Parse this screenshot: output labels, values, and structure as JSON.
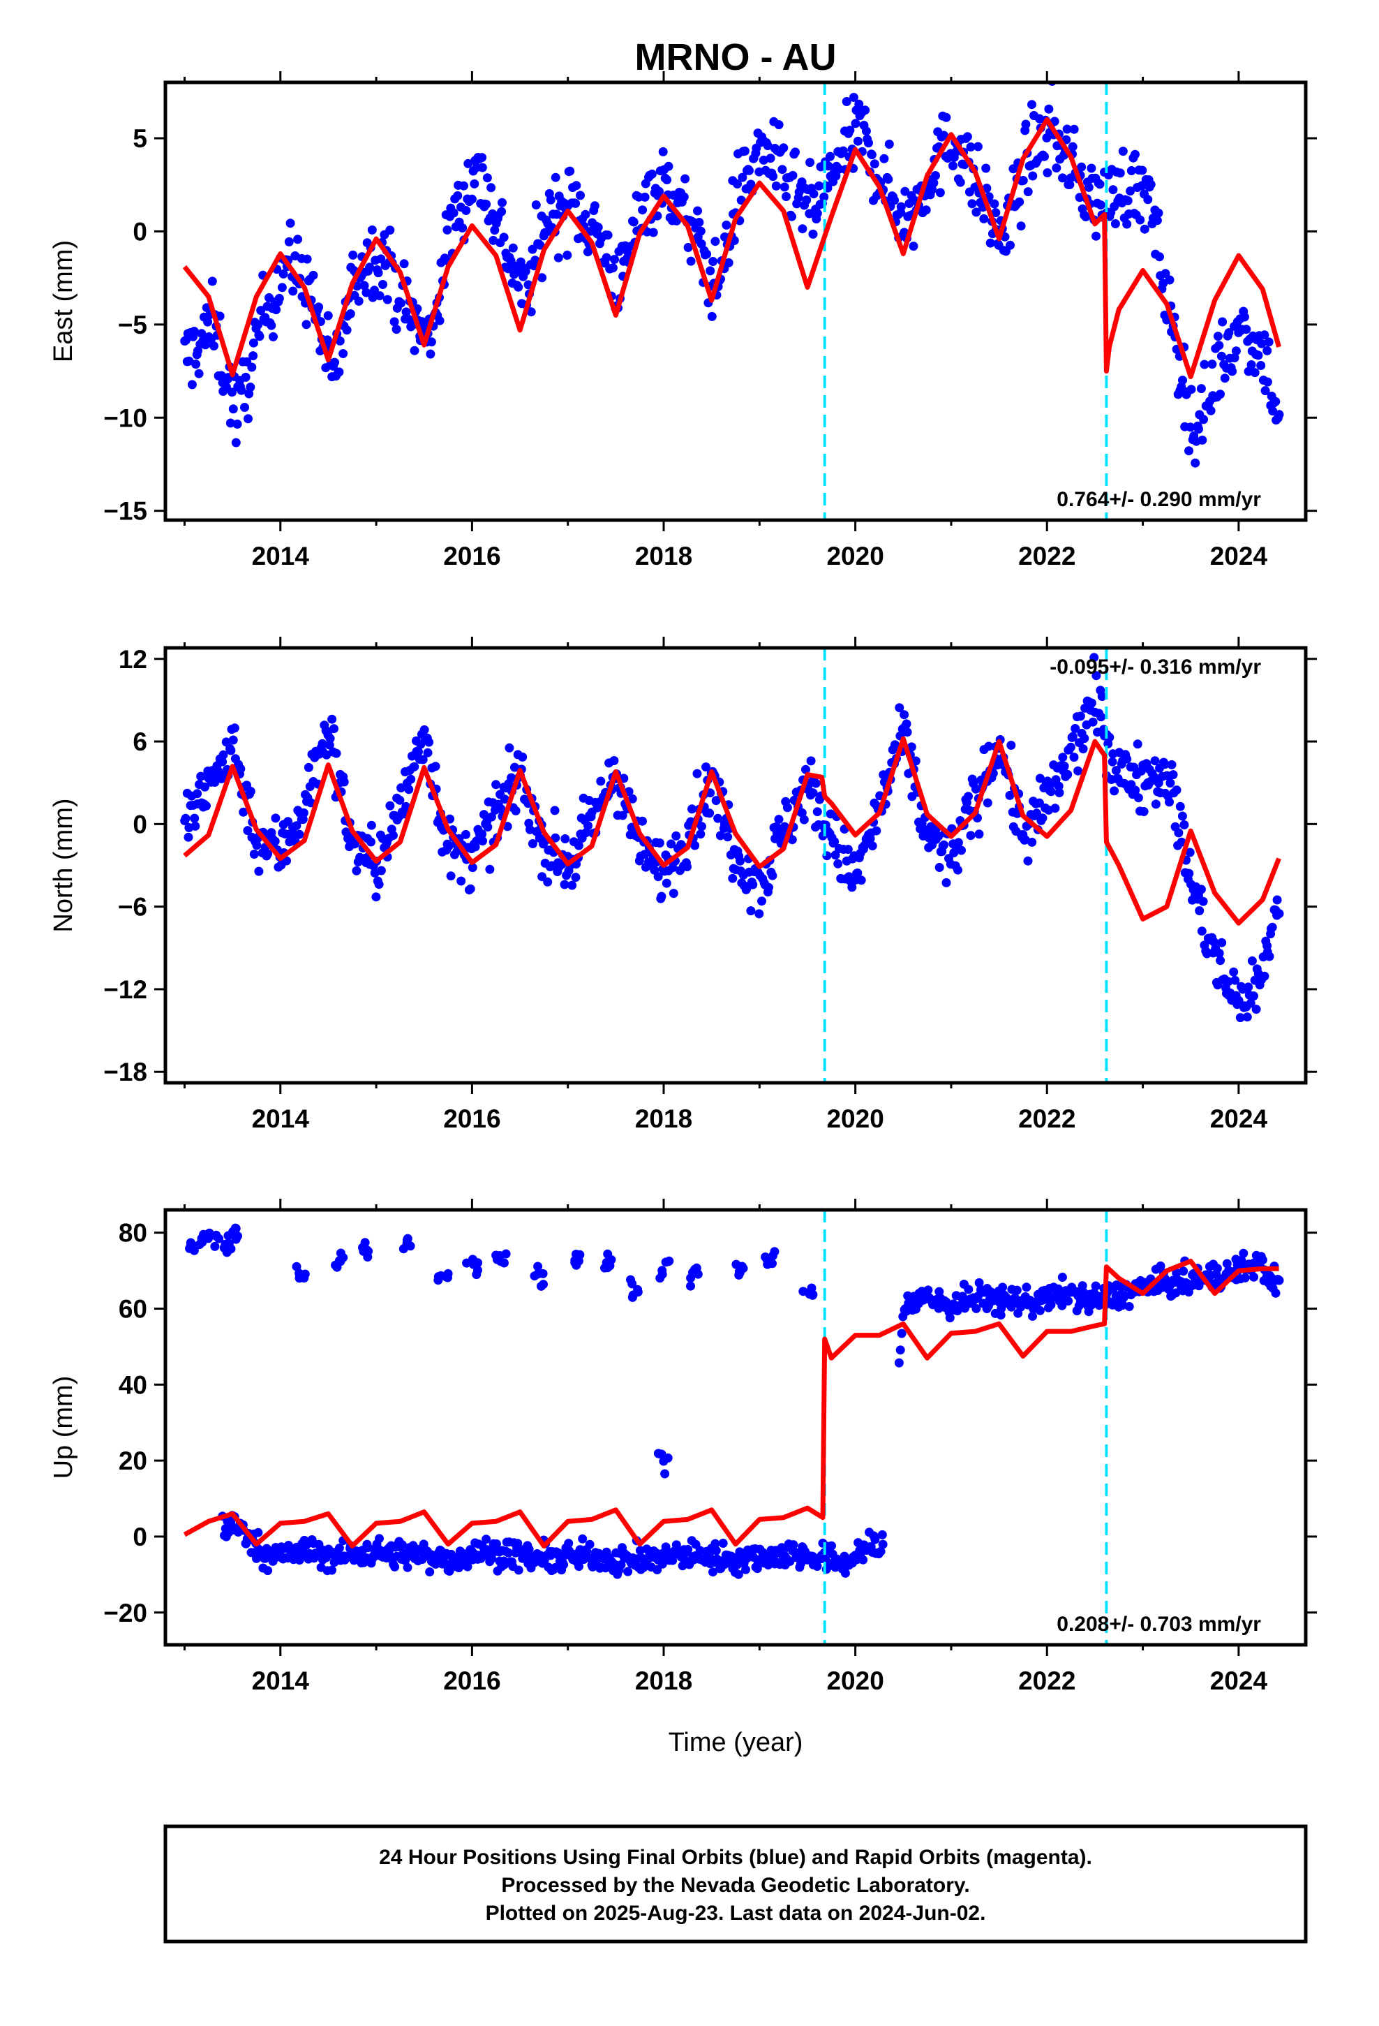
{
  "title": "MRNO - AU",
  "colors": {
    "points": "#0000ff",
    "model": "#ff0000",
    "offsets": "#00e5ff",
    "frame": "#000000"
  },
  "chart_data": [
    {
      "type": "scatter",
      "component": "east",
      "ylabel": "East (mm)",
      "xlabel": "",
      "xlim": [
        2012.8,
        2024.7
      ],
      "ylim": [
        -15.5,
        8
      ],
      "xticks": [
        2014,
        2016,
        2018,
        2020,
        2022,
        2024
      ],
      "yticks": [
        5,
        0,
        -5,
        -10,
        -15
      ],
      "offset_epochs": [
        2019.68,
        2022.62
      ],
      "rate_text": "0.764+/- 0.290 mm/yr",
      "rate_position": "bottom-right",
      "data_series": {
        "x": [
          2013.0,
          2013.3,
          2013.55,
          2013.8,
          2014.05,
          2014.3,
          2014.55,
          2014.8,
          2015.05,
          2015.3,
          2015.55,
          2015.8,
          2016.05,
          2016.3,
          2016.55,
          2016.8,
          2017.05,
          2017.3,
          2017.55,
          2017.8,
          2018.05,
          2018.3,
          2018.55,
          2018.8,
          2019.05,
          2019.3,
          2019.55,
          2019.8,
          2020.05,
          2020.3,
          2020.55,
          2020.8,
          2021.05,
          2021.3,
          2021.55,
          2021.8,
          2022.05,
          2022.3,
          2022.55,
          2022.8,
          2023.05,
          2023.3,
          2023.55,
          2023.8,
          2024.05,
          2024.3,
          2024.42
        ],
        "y": [
          -7.0,
          -5.0,
          -10.0,
          -5.0,
          -1.5,
          -3.0,
          -8.0,
          -2.0,
          -1.0,
          -4.0,
          -6.0,
          0.5,
          3.5,
          0.0,
          -3.5,
          1.0,
          1.5,
          0.0,
          -3.0,
          2.0,
          2.5,
          0.0,
          -3.0,
          2.5,
          4.5,
          2.5,
          1.0,
          3.5,
          5.5,
          2.5,
          0.5,
          3.5,
          5.0,
          2.0,
          -0.5,
          4.0,
          5.5,
          3.0,
          1.5,
          2.5,
          2.0,
          -5.0,
          -11.0,
          -7.0,
          -5.0,
          -7.0,
          -10.5
        ],
        "spread": 2.0
      },
      "model_series": {
        "x": [
          2013.0,
          2013.25,
          2013.5,
          2013.75,
          2014.0,
          2014.25,
          2014.5,
          2014.75,
          2015.0,
          2015.25,
          2015.5,
          2015.75,
          2016.0,
          2016.25,
          2016.5,
          2016.75,
          2017.0,
          2017.25,
          2017.5,
          2017.75,
          2018.0,
          2018.25,
          2018.5,
          2018.75,
          2019.0,
          2019.25,
          2019.5,
          2019.75,
          2020.0,
          2020.25,
          2020.5,
          2020.75,
          2021.0,
          2021.25,
          2021.5,
          2021.75,
          2022.0,
          2022.25,
          2022.5,
          2022.6,
          2022.62,
          2022.65,
          2022.75,
          2023.0,
          2023.25,
          2023.5,
          2023.75,
          2024.0,
          2024.25,
          2024.42
        ],
        "y": [
          -1.9,
          -3.5,
          -7.7,
          -3.5,
          -1.2,
          -3.0,
          -6.9,
          -2.8,
          -0.4,
          -2.2,
          -6.1,
          -1.9,
          0.3,
          -1.3,
          -5.3,
          -1.0,
          1.1,
          -0.6,
          -4.5,
          -0.1,
          1.9,
          0.3,
          -3.7,
          0.7,
          2.6,
          1.1,
          -3.0,
          0.8,
          4.4,
          2.4,
          -1.2,
          3.0,
          5.2,
          3.2,
          -0.4,
          3.9,
          6.0,
          4.0,
          0.4,
          0.9,
          -7.5,
          -6.2,
          -4.2,
          -2.1,
          -3.9,
          -7.8,
          -3.7,
          -1.3,
          -3.1,
          -6.2
        ]
      }
    },
    {
      "type": "scatter",
      "component": "north",
      "ylabel": "North (mm)",
      "xlabel": "",
      "xlim": [
        2012.8,
        2024.7
      ],
      "ylim": [
        -18.8,
        12.8
      ],
      "xticks": [
        2014,
        2016,
        2018,
        2020,
        2022,
        2024
      ],
      "yticks": [
        12,
        6,
        0,
        -6,
        -12,
        -18
      ],
      "offset_epochs": [
        2019.68,
        2022.62
      ],
      "rate_text": "-0.095+/- 0.316 mm/yr",
      "rate_position": "top-right",
      "data_series": {
        "x": [
          2013.0,
          2013.25,
          2013.5,
          2013.75,
          2014.0,
          2014.25,
          2014.5,
          2014.75,
          2015.0,
          2015.25,
          2015.5,
          2015.75,
          2016.0,
          2016.25,
          2016.5,
          2016.75,
          2017.0,
          2017.25,
          2017.5,
          2017.75,
          2018.0,
          2018.25,
          2018.5,
          2018.75,
          2019.0,
          2019.25,
          2019.5,
          2019.75,
          2020.0,
          2020.25,
          2020.5,
          2020.75,
          2021.0,
          2021.25,
          2021.5,
          2021.75,
          2022.0,
          2022.25,
          2022.5,
          2022.75,
          2023.0,
          2023.25,
          2023.5,
          2023.75,
          2024.0,
          2024.25,
          2024.42
        ],
        "y": [
          0.0,
          2.5,
          6.0,
          -1.0,
          -2.0,
          1.5,
          7.0,
          -1.5,
          -3.0,
          1.0,
          7.0,
          -2.0,
          -2.5,
          0.5,
          3.5,
          -1.5,
          -3.0,
          0.0,
          4.0,
          -2.0,
          -3.5,
          -0.5,
          3.0,
          -2.0,
          -4.5,
          -0.5,
          3.0,
          -1.0,
          -4.0,
          1.0,
          6.5,
          -1.0,
          -2.5,
          1.5,
          6.0,
          -1.0,
          1.5,
          5.0,
          9.0,
          3.5,
          3.5,
          4.0,
          -4.0,
          -10.0,
          -13.0,
          -11.0,
          -5.0
        ],
        "spread": 2.2
      },
      "model_series": {
        "x": [
          2013.0,
          2013.25,
          2013.5,
          2013.75,
          2014.0,
          2014.25,
          2014.5,
          2014.75,
          2015.0,
          2015.25,
          2015.5,
          2015.75,
          2016.0,
          2016.25,
          2016.5,
          2016.75,
          2017.0,
          2017.25,
          2017.5,
          2017.75,
          2018.0,
          2018.25,
          2018.5,
          2018.75,
          2019.0,
          2019.25,
          2019.5,
          2019.65,
          2019.68,
          2019.75,
          2020.0,
          2020.25,
          2020.5,
          2020.75,
          2021.0,
          2021.25,
          2021.5,
          2021.75,
          2022.0,
          2022.25,
          2022.5,
          2022.6,
          2022.62,
          2022.75,
          2023.0,
          2023.25,
          2023.5,
          2023.75,
          2024.0,
          2024.25,
          2024.42
        ],
        "y": [
          -2.3,
          -0.8,
          4.2,
          -0.4,
          -2.5,
          -1.2,
          4.3,
          -0.5,
          -2.7,
          -1.3,
          4.1,
          -0.4,
          -2.8,
          -1.5,
          3.9,
          -0.6,
          -2.9,
          -1.6,
          3.8,
          -0.7,
          -3.0,
          -1.7,
          3.8,
          -0.7,
          -3.1,
          -1.8,
          3.6,
          3.4,
          2.0,
          1.5,
          -0.8,
          0.8,
          6.2,
          0.7,
          -0.9,
          0.8,
          6.0,
          0.6,
          -0.9,
          1.0,
          6.0,
          5.0,
          -1.3,
          -3.0,
          -6.9,
          -6.0,
          -0.5,
          -5.0,
          -7.2,
          -5.5,
          -2.5
        ]
      }
    },
    {
      "type": "scatter",
      "component": "up",
      "ylabel": "Up (mm)",
      "xlabel": "Time (year)",
      "xlim": [
        2012.8,
        2024.7
      ],
      "ylim": [
        -28.5,
        86
      ],
      "xticks": [
        2014,
        2016,
        2018,
        2020,
        2022,
        2024
      ],
      "yticks": [
        80,
        60,
        40,
        20,
        0,
        -20
      ],
      "offset_epochs": [
        2019.68,
        2022.62
      ],
      "rate_text": "0.208+/- 0.703 mm/yr",
      "rate_position": "bottom-right",
      "data_series": {
        "x": [
          2013.4,
          2013.6,
          2013.8,
          2014.0,
          2014.3,
          2014.6,
          2014.9,
          2015.2,
          2015.5,
          2015.8,
          2016.1,
          2016.4,
          2016.7,
          2017.0,
          2017.3,
          2017.6,
          2017.9,
          2018.2,
          2018.5,
          2018.8,
          2019.1,
          2019.4,
          2019.7,
          2019.9,
          2020.1,
          2020.3,
          2020.5,
          2020.7,
          2021.0,
          2021.3,
          2021.6,
          2021.9,
          2022.2,
          2022.5,
          2022.8,
          2023.1,
          2023.4,
          2023.7,
          2024.0,
          2024.2,
          2024.42
        ],
        "y": [
          3.0,
          2.0,
          -4.0,
          -5.0,
          -4.0,
          -5.5,
          -4.0,
          -4.5,
          -5.0,
          -6.0,
          -4.0,
          -4.5,
          -6.0,
          -5.5,
          -5.0,
          -6.5,
          -6.0,
          -4.5,
          -5.5,
          -6.0,
          -5.0,
          -4.5,
          -6.0,
          -7.0,
          -3.0,
          -3.0,
          60.0,
          63.0,
          61.0,
          63.0,
          62.0,
          62.0,
          64.0,
          62.0,
          64.0,
          66.0,
          67.0,
          68.0,
          70.0,
          72.0,
          66.0
        ],
        "spread": 3.5,
        "outliers_x": [
          2013.2,
          2013.5,
          2014.2,
          2014.6,
          2014.9,
          2015.3,
          2015.7,
          2016.0,
          2016.3,
          2016.7,
          2017.1,
          2017.4,
          2017.7,
          2018.0,
          2018.3,
          2018.8,
          2019.1,
          2019.5,
          2013.1,
          2013.3,
          2013.45,
          2018.0
        ],
        "outliers_y": [
          78.0,
          80.0,
          69.0,
          73.0,
          76.0,
          78.0,
          68.0,
          72.0,
          74.0,
          69.0,
          73.0,
          72.0,
          65.0,
          71.0,
          68.0,
          70.0,
          73.0,
          64.0,
          76.0,
          79.0,
          77.0,
          20.0
        ]
      },
      "model_series": {
        "x": [
          2013.0,
          2013.25,
          2013.5,
          2013.75,
          2014.0,
          2014.25,
          2014.5,
          2014.75,
          2015.0,
          2015.25,
          2015.5,
          2015.75,
          2016.0,
          2016.25,
          2016.5,
          2016.75,
          2017.0,
          2017.25,
          2017.5,
          2017.75,
          2018.0,
          2018.25,
          2018.5,
          2018.75,
          2019.0,
          2019.25,
          2019.5,
          2019.66,
          2019.68,
          2019.75,
          2020.0,
          2020.25,
          2020.5,
          2020.75,
          2021.0,
          2021.25,
          2021.5,
          2021.75,
          2022.0,
          2022.25,
          2022.5,
          2022.6,
          2022.62,
          2022.75,
          2023.0,
          2023.25,
          2023.5,
          2023.75,
          2024.0,
          2024.25,
          2024.42
        ],
        "y": [
          0.5,
          4.0,
          6.0,
          -2.0,
          3.5,
          4.0,
          6.0,
          -2.5,
          3.5,
          4.0,
          6.5,
          -2.0,
          3.5,
          4.0,
          6.5,
          -2.5,
          4.0,
          4.5,
          7.0,
          -2.0,
          4.0,
          4.5,
          7.0,
          -2.0,
          4.5,
          5.0,
          7.5,
          5.0,
          52.0,
          47.0,
          53.0,
          53.0,
          56.0,
          47.0,
          53.5,
          54.0,
          56.0,
          47.5,
          54.0,
          54.0,
          55.5,
          56.0,
          71.0,
          68.0,
          64.0,
          70.0,
          72.5,
          64.0,
          70.0,
          70.5,
          70.5
        ]
      }
    }
  ],
  "caption": {
    "line1": "24 Hour Positions Using Final Orbits (blue) and Rapid Orbits (magenta).",
    "line2": "Processed by the Nevada Geodetic Laboratory.",
    "line3": "Plotted on 2025-Aug-23. Last data on 2024-Jun-02."
  }
}
